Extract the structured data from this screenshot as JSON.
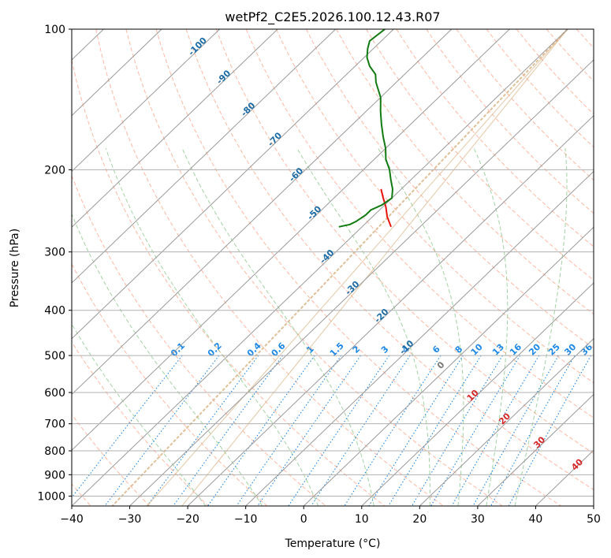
{
  "chart_data": {
    "type": "line",
    "subtype": "skew-t log-p diagram",
    "title": "wetPf2_C2E5.2026.100.12.43.R07",
    "xlabel": "Temperature (°C)",
    "ylabel": "Pressure (hPa)",
    "xlim": [
      -40,
      50
    ],
    "ylim": [
      1050,
      100
    ],
    "x_ticks": [
      "-40",
      "-30",
      "-20",
      "-10",
      "0",
      "10",
      "20",
      "30",
      "40",
      "50"
    ],
    "y_ticks": [
      "100",
      "200",
      "300",
      "400",
      "500",
      "600",
      "700",
      "800",
      "900",
      "1000"
    ],
    "grid": true,
    "series": [
      {
        "name": "temperature",
        "color": "#e8140c",
        "points": [
          {
            "p": 265,
            "t": -35.0
          },
          {
            "p": 252,
            "t": -37.5
          },
          {
            "p": 240,
            "t": -39.5
          },
          {
            "p": 230,
            "t": -41.5
          },
          {
            "p": 220,
            "t": -43.5
          }
        ]
      },
      {
        "name": "dewpoint",
        "color": "#117a11",
        "points": [
          {
            "p": 265,
            "t": -44.0
          },
          {
            "p": 262,
            "t": -42.5
          },
          {
            "p": 258,
            "t": -42.0
          },
          {
            "p": 250,
            "t": -41.5
          },
          {
            "p": 244,
            "t": -41.5
          },
          {
            "p": 238,
            "t": -40.5
          },
          {
            "p": 230,
            "t": -40.0
          },
          {
            "p": 220,
            "t": -41.5
          },
          {
            "p": 210,
            "t": -43.5
          },
          {
            "p": 200,
            "t": -45.5
          },
          {
            "p": 190,
            "t": -48.0
          },
          {
            "p": 180,
            "t": -50.0
          },
          {
            "p": 170,
            "t": -52.5
          },
          {
            "p": 160,
            "t": -55.0
          },
          {
            "p": 150,
            "t": -57.5
          },
          {
            "p": 140,
            "t": -60.0
          },
          {
            "p": 130,
            "t": -63.5
          },
          {
            "p": 125,
            "t": -65.0
          },
          {
            "p": 120,
            "t": -67.5
          },
          {
            "p": 115,
            "t": -69.5
          },
          {
            "p": 110,
            "t": -71.0
          },
          {
            "p": 106,
            "t": -72.0
          },
          {
            "p": 100,
            "t": -71.5
          }
        ]
      }
    ],
    "isotherms": {
      "color": "#9a9a9a",
      "values": [
        -130,
        -120,
        -110,
        -100,
        -90,
        -80,
        -70,
        -60,
        -50,
        -40,
        -30,
        -20,
        -10,
        0,
        10,
        20,
        30,
        40,
        50
      ]
    },
    "isotherm_labels": {
      "color": "#1d6ca6",
      "pressure": [
        110,
        128,
        150,
        174,
        207,
        250,
        310,
        362,
        415,
        485
      ],
      "values": [
        "-100",
        "-90",
        "-80",
        "-70",
        "-60",
        "-50",
        "-40",
        "-30",
        "-20",
        "-10"
      ]
    },
    "dry_adiabats": {
      "color": "#ff9a7a",
      "theta_c": [
        -40,
        -30,
        -20,
        -10,
        0,
        10,
        20,
        30,
        40,
        50,
        60,
        70,
        80,
        90,
        100,
        110,
        120,
        130,
        140,
        150,
        160,
        170,
        180,
        190
      ]
    },
    "moist_adiabats": {
      "color": "#7cc07c",
      "thetaw_c": [
        -20,
        -10,
        0,
        10,
        20,
        25,
        30,
        35
      ]
    },
    "mixing_ratio": {
      "color": "#1e88e5",
      "values": [
        "0.1",
        "0.2",
        "0.4",
        "0.6",
        "1",
        "1.5",
        "2",
        "3",
        "4",
        "6",
        "8",
        "10",
        "13",
        "16",
        "20",
        "25",
        "30",
        "36"
      ]
    },
    "wet_bulb_labels": {
      "color": "#d62728",
      "values": [
        "0",
        "10",
        "20",
        "30",
        "40"
      ],
      "pressure": [
        530,
        615,
        690,
        775,
        865
      ],
      "temp_c": [
        24,
        29.5,
        35,
        41,
        47.5
      ]
    },
    "guides": {
      "color": "#d8b080",
      "note": "dashed tan curve near left plus two faint solid tan arcs",
      "dashed_t_at_100": -40,
      "dashed_t_at_1050": -33,
      "arc1_t_at_100": -40,
      "arc1_t_at_1050": -27,
      "arc2_t_at_100": -40,
      "arc2_t_at_1050": -21
    }
  }
}
